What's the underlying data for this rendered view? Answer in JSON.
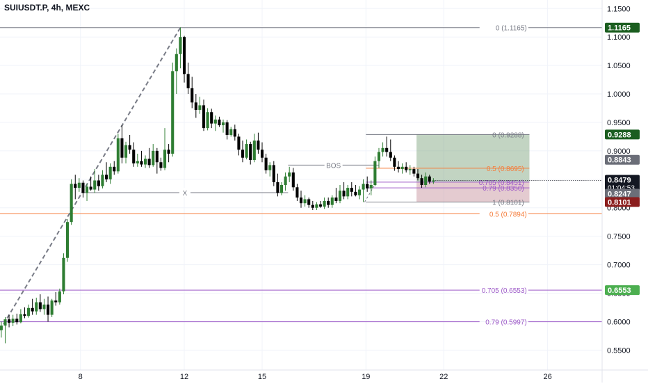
{
  "header": {
    "title": "SUIUSDT.P, 4h, MEXC"
  },
  "colors": {
    "up": "#2e7d32",
    "down": "#000000",
    "grid": "#f0f3fa",
    "axis_text": "#131722",
    "fib": "#787b86",
    "fib_orange": "#f57c3a",
    "fib_purple": "#9c58c7",
    "target_zone": "rgba(120,160,120,0.45)",
    "stop_zone": "rgba(205,160,170,0.55)"
  },
  "chart_data": {
    "type": "candlestick",
    "symbol": "SUIUSDT.P",
    "timeframe": "4h",
    "exchange": "MEXC",
    "y_axis": {
      "range": [
        0.515,
        1.165
      ],
      "ticks": [
        "1.1500",
        "1.1000",
        "1.0500",
        "1.0000",
        "0.9500",
        "0.9000",
        "0.8500",
        "0.8000",
        "0.7500",
        "0.7000",
        "0.6500",
        "0.6000",
        "0.5500"
      ]
    },
    "x_axis": {
      "range_days": [
        4.9,
        28.1
      ],
      "ticks": [
        {
          "label": "8",
          "day": 8
        },
        {
          "label": "12",
          "day": 12
        },
        {
          "label": "15",
          "day": 15
        },
        {
          "label": "19",
          "day": 19
        },
        {
          "label": "22",
          "day": 22
        },
        {
          "label": "26",
          "day": 26
        }
      ]
    },
    "candles": [
      {
        "d": 4.95,
        "o": 0.585,
        "h": 0.6,
        "l": 0.572,
        "c": 0.593
      },
      {
        "d": 5.1,
        "o": 0.593,
        "h": 0.608,
        "l": 0.562,
        "c": 0.604
      },
      {
        "d": 5.25,
        "o": 0.604,
        "h": 0.612,
        "l": 0.59,
        "c": 0.598
      },
      {
        "d": 5.4,
        "o": 0.598,
        "h": 0.612,
        "l": 0.592,
        "c": 0.605
      },
      {
        "d": 5.55,
        "o": 0.605,
        "h": 0.614,
        "l": 0.595,
        "c": 0.599
      },
      {
        "d": 5.7,
        "o": 0.599,
        "h": 0.622,
        "l": 0.597,
        "c": 0.613
      },
      {
        "d": 5.85,
        "o": 0.613,
        "h": 0.625,
        "l": 0.606,
        "c": 0.61
      },
      {
        "d": 6.0,
        "o": 0.61,
        "h": 0.63,
        "l": 0.607,
        "c": 0.624
      },
      {
        "d": 6.15,
        "o": 0.624,
        "h": 0.64,
        "l": 0.612,
        "c": 0.618
      },
      {
        "d": 6.3,
        "o": 0.618,
        "h": 0.642,
        "l": 0.612,
        "c": 0.634
      },
      {
        "d": 6.45,
        "o": 0.634,
        "h": 0.648,
        "l": 0.617,
        "c": 0.622
      },
      {
        "d": 6.6,
        "o": 0.622,
        "h": 0.64,
        "l": 0.612,
        "c": 0.63
      },
      {
        "d": 6.75,
        "o": 0.63,
        "h": 0.644,
        "l": 0.6,
        "c": 0.612
      },
      {
        "d": 6.9,
        "o": 0.612,
        "h": 0.64,
        "l": 0.608,
        "c": 0.637
      },
      {
        "d": 7.05,
        "o": 0.637,
        "h": 0.652,
        "l": 0.628,
        "c": 0.634
      },
      {
        "d": 7.2,
        "o": 0.634,
        "h": 0.658,
        "l": 0.63,
        "c": 0.653
      },
      {
        "d": 7.35,
        "o": 0.653,
        "h": 0.72,
        "l": 0.648,
        "c": 0.712
      },
      {
        "d": 7.5,
        "o": 0.712,
        "h": 0.78,
        "l": 0.705,
        "c": 0.775
      },
      {
        "d": 7.65,
        "o": 0.775,
        "h": 0.85,
        "l": 0.77,
        "c": 0.842
      },
      {
        "d": 7.8,
        "o": 0.842,
        "h": 0.858,
        "l": 0.815,
        "c": 0.835
      },
      {
        "d": 7.95,
        "o": 0.835,
        "h": 0.852,
        "l": 0.828,
        "c": 0.844
      },
      {
        "d": 8.1,
        "o": 0.844,
        "h": 0.848,
        "l": 0.818,
        "c": 0.826
      },
      {
        "d": 8.25,
        "o": 0.826,
        "h": 0.842,
        "l": 0.812,
        "c": 0.837
      },
      {
        "d": 8.4,
        "o": 0.837,
        "h": 0.855,
        "l": 0.83,
        "c": 0.832
      },
      {
        "d": 8.55,
        "o": 0.832,
        "h": 0.868,
        "l": 0.826,
        "c": 0.848
      },
      {
        "d": 8.7,
        "o": 0.848,
        "h": 0.858,
        "l": 0.83,
        "c": 0.838
      },
      {
        "d": 8.85,
        "o": 0.838,
        "h": 0.866,
        "l": 0.834,
        "c": 0.858
      },
      {
        "d": 9.0,
        "o": 0.858,
        "h": 0.88,
        "l": 0.845,
        "c": 0.85
      },
      {
        "d": 9.15,
        "o": 0.85,
        "h": 0.878,
        "l": 0.842,
        "c": 0.872
      },
      {
        "d": 9.3,
        "o": 0.872,
        "h": 0.882,
        "l": 0.858,
        "c": 0.864
      },
      {
        "d": 9.45,
        "o": 0.864,
        "h": 0.93,
        "l": 0.86,
        "c": 0.922
      },
      {
        "d": 9.6,
        "o": 0.922,
        "h": 0.945,
        "l": 0.878,
        "c": 0.888
      },
      {
        "d": 9.75,
        "o": 0.888,
        "h": 0.916,
        "l": 0.878,
        "c": 0.91
      },
      {
        "d": 9.9,
        "o": 0.91,
        "h": 0.928,
        "l": 0.895,
        "c": 0.902
      },
      {
        "d": 10.05,
        "o": 0.902,
        "h": 0.915,
        "l": 0.872,
        "c": 0.878
      },
      {
        "d": 10.2,
        "o": 0.878,
        "h": 0.895,
        "l": 0.872,
        "c": 0.882
      },
      {
        "d": 10.35,
        "o": 0.882,
        "h": 0.9,
        "l": 0.872,
        "c": 0.876
      },
      {
        "d": 10.5,
        "o": 0.876,
        "h": 0.892,
        "l": 0.87,
        "c": 0.886
      },
      {
        "d": 10.65,
        "o": 0.886,
        "h": 0.905,
        "l": 0.87,
        "c": 0.875
      },
      {
        "d": 10.8,
        "o": 0.875,
        "h": 0.912,
        "l": 0.872,
        "c": 0.9
      },
      {
        "d": 10.95,
        "o": 0.9,
        "h": 0.905,
        "l": 0.86,
        "c": 0.88
      },
      {
        "d": 11.1,
        "o": 0.88,
        "h": 0.888,
        "l": 0.865,
        "c": 0.87
      },
      {
        "d": 11.25,
        "o": 0.87,
        "h": 0.94,
        "l": 0.866,
        "c": 0.902
      },
      {
        "d": 11.4,
        "o": 0.902,
        "h": 0.912,
        "l": 0.88,
        "c": 0.895
      },
      {
        "d": 11.55,
        "o": 0.895,
        "h": 1.055,
        "l": 0.89,
        "c": 1.04
      },
      {
        "d": 11.7,
        "o": 1.04,
        "h": 1.08,
        "l": 1.0,
        "c": 1.07
      },
      {
        "d": 11.85,
        "o": 1.07,
        "h": 1.117,
        "l": 1.045,
        "c": 1.1
      },
      {
        "d": 12.0,
        "o": 1.1,
        "h": 1.102,
        "l": 1.02,
        "c": 1.035
      },
      {
        "d": 12.15,
        "o": 1.035,
        "h": 1.055,
        "l": 1.0,
        "c": 1.01
      },
      {
        "d": 12.3,
        "o": 1.01,
        "h": 1.03,
        "l": 0.975,
        "c": 0.985
      },
      {
        "d": 12.45,
        "o": 0.985,
        "h": 1.0,
        "l": 0.958,
        "c": 0.972
      },
      {
        "d": 12.6,
        "o": 0.972,
        "h": 0.995,
        "l": 0.965,
        "c": 0.98
      },
      {
        "d": 12.75,
        "o": 0.98,
        "h": 0.99,
        "l": 0.935,
        "c": 0.94
      },
      {
        "d": 12.9,
        "o": 0.94,
        "h": 0.975,
        "l": 0.936,
        "c": 0.968
      },
      {
        "d": 13.05,
        "o": 0.968,
        "h": 0.974,
        "l": 0.94,
        "c": 0.948
      },
      {
        "d": 13.2,
        "o": 0.948,
        "h": 0.962,
        "l": 0.935,
        "c": 0.955
      },
      {
        "d": 13.35,
        "o": 0.955,
        "h": 0.96,
        "l": 0.942,
        "c": 0.945
      },
      {
        "d": 13.5,
        "o": 0.945,
        "h": 0.955,
        "l": 0.932,
        "c": 0.95
      },
      {
        "d": 13.65,
        "o": 0.95,
        "h": 0.954,
        "l": 0.92,
        "c": 0.928
      },
      {
        "d": 13.8,
        "o": 0.928,
        "h": 0.942,
        "l": 0.925,
        "c": 0.938
      },
      {
        "d": 13.95,
        "o": 0.938,
        "h": 0.946,
        "l": 0.918,
        "c": 0.925
      },
      {
        "d": 14.1,
        "o": 0.925,
        "h": 0.93,
        "l": 0.892,
        "c": 0.902
      },
      {
        "d": 14.25,
        "o": 0.902,
        "h": 0.918,
        "l": 0.88,
        "c": 0.888
      },
      {
        "d": 14.4,
        "o": 0.888,
        "h": 0.92,
        "l": 0.885,
        "c": 0.912
      },
      {
        "d": 14.55,
        "o": 0.912,
        "h": 0.916,
        "l": 0.876,
        "c": 0.884
      },
      {
        "d": 14.7,
        "o": 0.884,
        "h": 0.93,
        "l": 0.88,
        "c": 0.918
      },
      {
        "d": 14.85,
        "o": 0.918,
        "h": 0.932,
        "l": 0.895,
        "c": 0.902
      },
      {
        "d": 15.0,
        "o": 0.902,
        "h": 0.915,
        "l": 0.88,
        "c": 0.888
      },
      {
        "d": 15.15,
        "o": 0.888,
        "h": 0.895,
        "l": 0.86,
        "c": 0.866
      },
      {
        "d": 15.3,
        "o": 0.866,
        "h": 0.88,
        "l": 0.855,
        "c": 0.875
      },
      {
        "d": 15.45,
        "o": 0.875,
        "h": 0.882,
        "l": 0.838,
        "c": 0.845
      },
      {
        "d": 15.6,
        "o": 0.845,
        "h": 0.86,
        "l": 0.82,
        "c": 0.826
      },
      {
        "d": 15.75,
        "o": 0.826,
        "h": 0.845,
        "l": 0.822,
        "c": 0.84
      },
      {
        "d": 15.9,
        "o": 0.84,
        "h": 0.862,
        "l": 0.83,
        "c": 0.855
      },
      {
        "d": 16.05,
        "o": 0.855,
        "h": 0.872,
        "l": 0.845,
        "c": 0.862
      },
      {
        "d": 16.2,
        "o": 0.862,
        "h": 0.87,
        "l": 0.83,
        "c": 0.836
      },
      {
        "d": 16.35,
        "o": 0.836,
        "h": 0.842,
        "l": 0.812,
        "c": 0.818
      },
      {
        "d": 16.5,
        "o": 0.818,
        "h": 0.83,
        "l": 0.8,
        "c": 0.808
      },
      {
        "d": 16.65,
        "o": 0.808,
        "h": 0.822,
        "l": 0.802,
        "c": 0.815
      },
      {
        "d": 16.8,
        "o": 0.815,
        "h": 0.818,
        "l": 0.8,
        "c": 0.805
      },
      {
        "d": 16.95,
        "o": 0.805,
        "h": 0.812,
        "l": 0.796,
        "c": 0.8
      },
      {
        "d": 17.1,
        "o": 0.8,
        "h": 0.81,
        "l": 0.796,
        "c": 0.806
      },
      {
        "d": 17.25,
        "o": 0.806,
        "h": 0.812,
        "l": 0.8,
        "c": 0.802
      },
      {
        "d": 17.4,
        "o": 0.802,
        "h": 0.818,
        "l": 0.798,
        "c": 0.812
      },
      {
        "d": 17.55,
        "o": 0.812,
        "h": 0.818,
        "l": 0.8,
        "c": 0.805
      },
      {
        "d": 17.7,
        "o": 0.805,
        "h": 0.822,
        "l": 0.8,
        "c": 0.818
      },
      {
        "d": 17.85,
        "o": 0.818,
        "h": 0.835,
        "l": 0.808,
        "c": 0.812
      },
      {
        "d": 18.0,
        "o": 0.812,
        "h": 0.84,
        "l": 0.808,
        "c": 0.83
      },
      {
        "d": 18.15,
        "o": 0.83,
        "h": 0.845,
        "l": 0.815,
        "c": 0.82
      },
      {
        "d": 18.3,
        "o": 0.82,
        "h": 0.84,
        "l": 0.815,
        "c": 0.835
      },
      {
        "d": 18.45,
        "o": 0.835,
        "h": 0.845,
        "l": 0.82,
        "c": 0.828
      },
      {
        "d": 18.6,
        "o": 0.828,
        "h": 0.84,
        "l": 0.82,
        "c": 0.822
      },
      {
        "d": 18.75,
        "o": 0.822,
        "h": 0.838,
        "l": 0.815,
        "c": 0.832
      },
      {
        "d": 18.9,
        "o": 0.832,
        "h": 0.85,
        "l": 0.81,
        "c": 0.842
      },
      {
        "d": 19.05,
        "o": 0.842,
        "h": 0.855,
        "l": 0.828,
        "c": 0.834
      },
      {
        "d": 19.2,
        "o": 0.834,
        "h": 0.848,
        "l": 0.822,
        "c": 0.84
      },
      {
        "d": 19.35,
        "o": 0.84,
        "h": 0.89,
        "l": 0.838,
        "c": 0.882
      },
      {
        "d": 19.5,
        "o": 0.882,
        "h": 0.905,
        "l": 0.87,
        "c": 0.898
      },
      {
        "d": 19.65,
        "o": 0.898,
        "h": 0.915,
        "l": 0.89,
        "c": 0.905
      },
      {
        "d": 19.8,
        "o": 0.905,
        "h": 0.925,
        "l": 0.89,
        "c": 0.898
      },
      {
        "d": 19.95,
        "o": 0.898,
        "h": 0.92,
        "l": 0.882,
        "c": 0.888
      },
      {
        "d": 20.1,
        "o": 0.888,
        "h": 0.892,
        "l": 0.865,
        "c": 0.872
      },
      {
        "d": 20.25,
        "o": 0.872,
        "h": 0.882,
        "l": 0.862,
        "c": 0.868
      },
      {
        "d": 20.4,
        "o": 0.868,
        "h": 0.878,
        "l": 0.86,
        "c": 0.872
      },
      {
        "d": 20.55,
        "o": 0.872,
        "h": 0.88,
        "l": 0.862,
        "c": 0.866
      },
      {
        "d": 20.7,
        "o": 0.866,
        "h": 0.875,
        "l": 0.858,
        "c": 0.868
      },
      {
        "d": 20.85,
        "o": 0.868,
        "h": 0.872,
        "l": 0.855,
        "c": 0.86
      },
      {
        "d": 21.0,
        "o": 0.86,
        "h": 0.868,
        "l": 0.848,
        "c": 0.852
      },
      {
        "d": 21.15,
        "o": 0.852,
        "h": 0.858,
        "l": 0.835,
        "c": 0.84
      },
      {
        "d": 21.3,
        "o": 0.84,
        "h": 0.862,
        "l": 0.836,
        "c": 0.855
      },
      {
        "d": 21.45,
        "o": 0.855,
        "h": 0.858,
        "l": 0.842,
        "c": 0.846
      },
      {
        "d": 21.6,
        "o": 0.846,
        "h": 0.852,
        "l": 0.842,
        "c": 0.848
      }
    ],
    "fib_upper": {
      "levels": [
        {
          "label": "0 (0.9288)",
          "value": 0.9288,
          "color_key": "fib"
        },
        {
          "label": "0.5 (0.8695)",
          "value": 0.8695,
          "color_key": "fib_orange"
        },
        {
          "label": "0.705 (0.8451)",
          "value": 0.8451,
          "color_key": "fib_purple"
        },
        {
          "label": "0.79 (0.8350)",
          "value": 0.835,
          "color_key": "fib_purple"
        },
        {
          "label": "1 (0.8101)",
          "value": 0.8101,
          "color_key": "fib"
        }
      ]
    },
    "fib_lower": {
      "levels": [
        {
          "label": "0 (1.1165)",
          "value": 1.1165,
          "color_key": "fib"
        },
        {
          "label": "0.5 (0.7894)",
          "value": 0.7894,
          "color_key": "fib_orange"
        },
        {
          "label": "0.705 (0.6553)",
          "value": 0.6553,
          "color_key": "fib_purple"
        },
        {
          "label": "0.79 (0.5997)",
          "value": 0.5997,
          "color_key": "fib_purple"
        }
      ]
    },
    "annotations": {
      "bos": {
        "text": "BOS",
        "price": 0.875,
        "d_start": 16.0,
        "d_end": 19.5
      },
      "x_mark": {
        "text": "X",
        "price": 0.8265,
        "d_start": 8.05,
        "d_end": 16.0
      }
    },
    "position": {
      "d_start": 20.95,
      "d_end": 25.3,
      "entry": 0.8451,
      "target": 0.9288,
      "stop": 0.8101
    },
    "price_labels": [
      {
        "text": "1.1165",
        "value": 1.1165,
        "bg": "#1b5e20",
        "fg": "#ffffff"
      },
      {
        "text": "0.9288",
        "value": 0.9288,
        "bg": "#1b5e20",
        "fg": "#ffffff"
      },
      {
        "text": "0.8843",
        "value": 0.8843,
        "bg": "#6b6e78",
        "fg": "#ffffff"
      },
      {
        "text": "0.8479",
        "value": 0.8479,
        "bg": "#131722",
        "fg": "#ffffff",
        "sub": "01:04:53"
      },
      {
        "text": "0.8247",
        "value": 0.8247,
        "bg": "#6b6e78",
        "fg": "#ffffff"
      },
      {
        "text": "0.8101",
        "value": 0.8101,
        "bg": "#8b1d1d",
        "fg": "#ffffff"
      },
      {
        "text": "0.6553",
        "value": 0.6553,
        "bg": "#4caf50",
        "fg": "#ffffff"
      }
    ]
  }
}
